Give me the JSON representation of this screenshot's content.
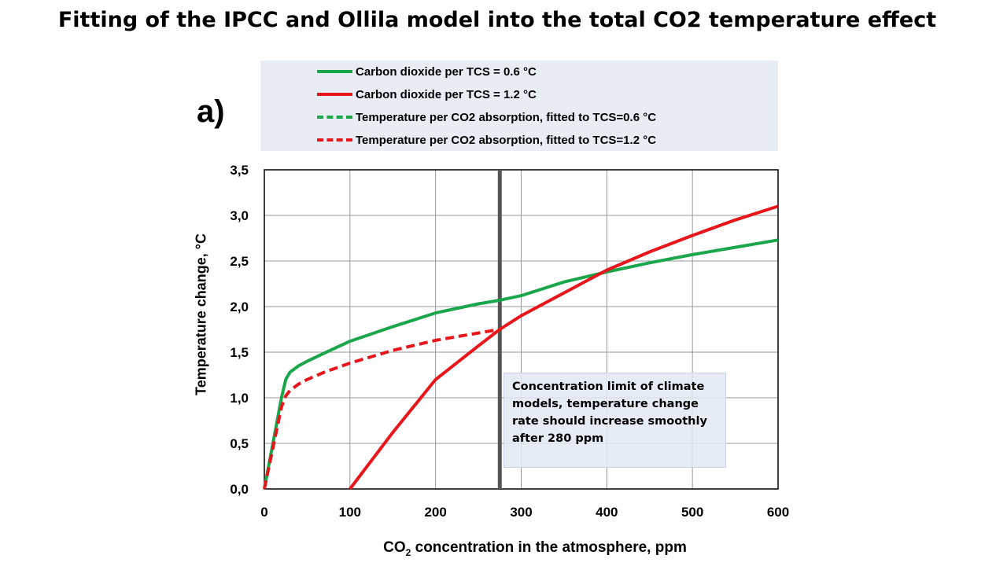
{
  "slide": {
    "title": "Fitting of the IPCC and Ollila model into the total CO2 temperature effect",
    "panel_label": "a)"
  },
  "annotation": {
    "text": "Concentration limit of climate models, temperature change rate should increase smoothly after 280 ppm"
  },
  "chart_data": {
    "type": "line",
    "xlabel_main": "CO",
    "xlabel_sub": "2",
    "xlabel_rest": " concentration in the atmosphere, ppm",
    "ylabel": "Temperature change, °C",
    "xlim": [
      0,
      600
    ],
    "ylim": [
      0,
      3.5
    ],
    "x_ticks": [
      "0",
      "100",
      "200",
      "300",
      "400",
      "500",
      "600"
    ],
    "y_ticks": [
      "0,0",
      "0,5",
      "1,0",
      "1,5",
      "2,0",
      "2,5",
      "3,0",
      "3,5"
    ],
    "grid": true,
    "legend_position": "top, above plot",
    "vertical_marker_x": 275,
    "series": [
      {
        "name": "Carbon dioxide per TCS = 0.6 °C",
        "color": "#1aa64a",
        "style": "solid",
        "x": [
          0,
          10,
          20,
          25,
          30,
          40,
          50,
          70,
          100,
          150,
          200,
          250,
          275,
          300,
          350,
          400,
          450,
          500,
          550,
          600
        ],
        "y": [
          0.0,
          0.5,
          1.0,
          1.2,
          1.28,
          1.35,
          1.4,
          1.49,
          1.62,
          1.78,
          1.93,
          2.03,
          2.07,
          2.12,
          2.27,
          2.38,
          2.48,
          2.57,
          2.65,
          2.73
        ]
      },
      {
        "name": "Carbon dioxide per TCS = 1.2 °C",
        "color": "#e8151b",
        "style": "solid",
        "x": [
          100,
          150,
          200,
          250,
          275,
          300,
          350,
          400,
          450,
          500,
          550,
          600
        ],
        "y": [
          0.0,
          0.62,
          1.2,
          1.57,
          1.75,
          1.9,
          2.15,
          2.4,
          2.6,
          2.78,
          2.95,
          3.1
        ]
      },
      {
        "name": "Temperature per CO2 absorption, fitted to TCS=0.6 °C",
        "color": "#1aa64a",
        "style": "dashed",
        "x": [],
        "y": []
      },
      {
        "name": "Temperature per CO2 absorption, fitted to TCS=1.2 °C",
        "color": "#e8151b",
        "style": "dashed",
        "x": [
          0,
          10,
          20,
          25,
          30,
          40,
          50,
          70,
          100,
          150,
          200,
          250,
          275
        ],
        "y": [
          0.0,
          0.45,
          0.9,
          1.02,
          1.08,
          1.15,
          1.2,
          1.28,
          1.38,
          1.52,
          1.63,
          1.71,
          1.75
        ]
      }
    ]
  }
}
